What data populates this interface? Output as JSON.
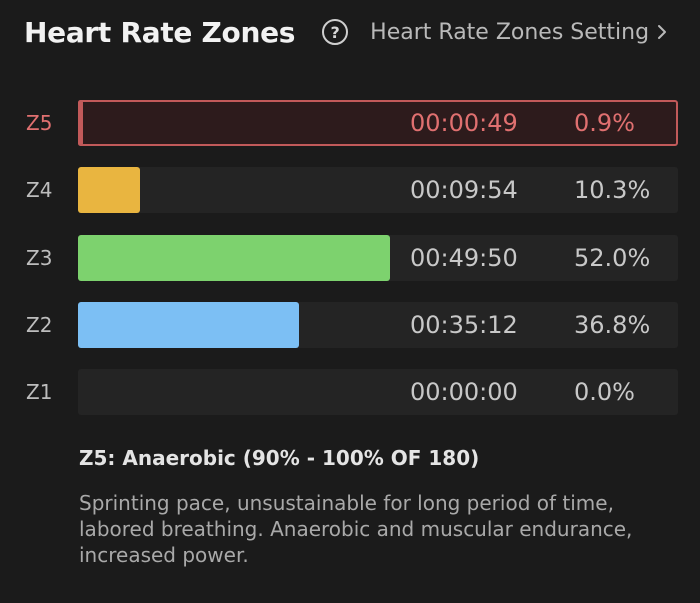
{
  "header": {
    "title": "Heart Rate Zones",
    "help_icon": "question-circle-icon",
    "settings_label": "Heart Rate Zones Setting",
    "settings_icon": "chevron-right-icon"
  },
  "zones": [
    {
      "label": "Z5",
      "time": "00:00:49",
      "percent": "0.9%",
      "fraction": 0.009,
      "color": "#c25a5a",
      "selected": true
    },
    {
      "label": "Z4",
      "time": "00:09:54",
      "percent": "10.3%",
      "fraction": 0.103,
      "color": "#e9b540",
      "selected": false
    },
    {
      "label": "Z3",
      "time": "00:49:50",
      "percent": "52.0%",
      "fraction": 0.52,
      "color": "#7dd26e",
      "selected": false
    },
    {
      "label": "Z2",
      "time": "00:35:12",
      "percent": "36.8%",
      "fraction": 0.368,
      "color": "#7cbff4",
      "selected": false
    },
    {
      "label": "Z1",
      "time": "00:00:00",
      "percent": "0.0%",
      "fraction": 0.0,
      "color": "#8a8a8a",
      "selected": false
    }
  ],
  "description": {
    "title": "Z5: Anaerobic (90% - 100% OF 180)",
    "text": "Sprinting pace, unsustainable for long period of time, labored breathing. Anaerobic and muscular endurance, increased power."
  }
}
